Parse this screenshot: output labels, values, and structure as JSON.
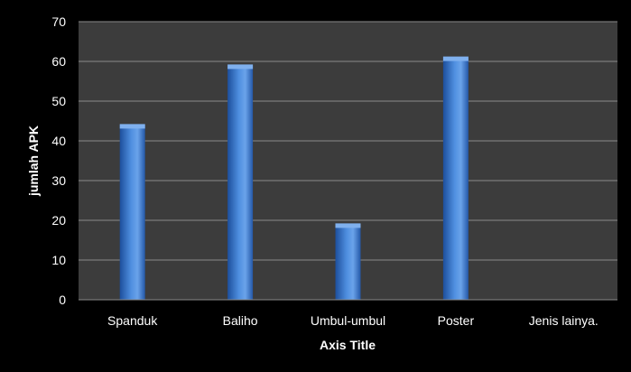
{
  "chart_data": {
    "type": "bar",
    "categories": [
      "Spanduk",
      "Baliho",
      "Umbul-umbul",
      "Poster",
      "Jenis lainya."
    ],
    "values": [
      44,
      59,
      19,
      61,
      0
    ],
    "xlabel": "Axis Title",
    "ylabel": "jumlah APK",
    "ylim": [
      0,
      70
    ],
    "yticks": [
      0,
      10,
      20,
      30,
      40,
      50,
      60,
      70
    ],
    "grid": true
  },
  "colors": {
    "page_background": "#000000",
    "plot_background": "#3c3c3c",
    "gridline": "#8a8a8a",
    "bar": "#3e7fd6",
    "bar_dark": "#1d4f9c",
    "bar_light": "#7fb0ee"
  }
}
